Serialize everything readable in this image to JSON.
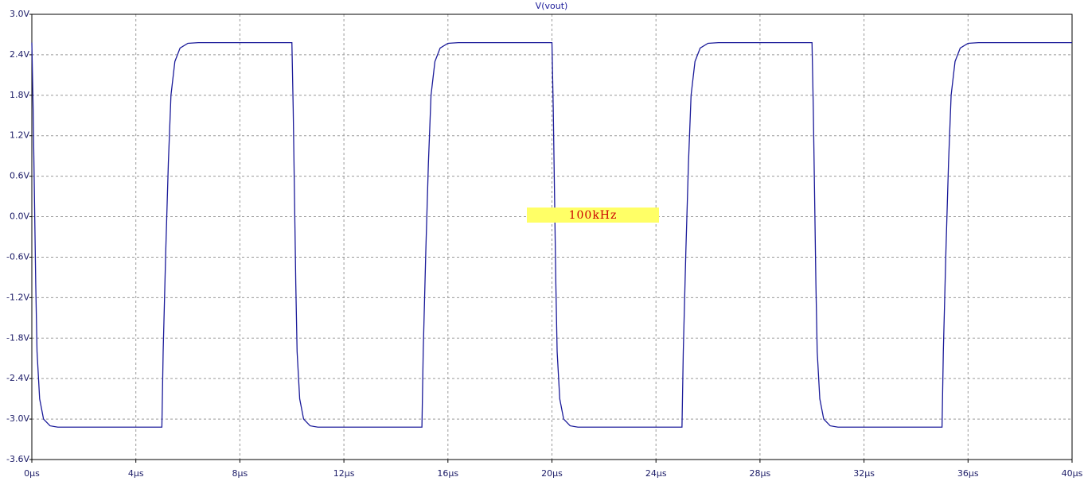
{
  "chart_data": {
    "type": "line",
    "x": [
      0,
      0.05,
      0.1,
      0.15,
      0.2,
      0.3,
      0.45,
      0.7,
      1,
      5,
      5.05,
      5.15,
      5.25,
      5.35,
      5.5,
      5.7,
      6,
      6.4,
      10,
      10.05,
      10.1,
      10.15,
      10.2,
      10.3,
      10.45,
      10.7,
      11,
      15,
      15.05,
      15.15,
      15.25,
      15.35,
      15.5,
      15.7,
      16,
      16.4,
      20,
      20.05,
      20.1,
      20.15,
      20.2,
      20.3,
      20.45,
      20.7,
      21,
      25,
      25.05,
      25.15,
      25.25,
      25.35,
      25.5,
      25.7,
      26,
      26.4,
      30,
      30.05,
      30.1,
      30.15,
      30.2,
      30.3,
      30.45,
      30.7,
      31,
      35,
      35.05,
      35.15,
      35.25,
      35.35,
      35.5,
      35.7,
      36,
      36.4,
      40
    ],
    "series": [
      {
        "name": "V(vout)",
        "color": "#1a1a99",
        "values": [
          2.58,
          1.6,
          0.3,
          -1.0,
          -2.0,
          -2.7,
          -3.0,
          -3.1,
          -3.12,
          -3.12,
          -2.0,
          -0.5,
          0.8,
          1.8,
          2.3,
          2.5,
          2.57,
          2.58,
          2.58,
          1.6,
          0.3,
          -1.0,
          -2.0,
          -2.7,
          -3.0,
          -3.1,
          -3.12,
          -3.12,
          -2.0,
          -0.5,
          0.8,
          1.8,
          2.3,
          2.5,
          2.57,
          2.58,
          2.58,
          1.6,
          0.3,
          -1.0,
          -2.0,
          -2.7,
          -3.0,
          -3.1,
          -3.12,
          -3.12,
          -2.0,
          -0.5,
          0.8,
          1.8,
          2.3,
          2.5,
          2.57,
          2.58,
          2.58,
          1.6,
          0.3,
          -1.0,
          -2.0,
          -2.7,
          -3.0,
          -3.1,
          -3.12,
          -3.12,
          -2.0,
          -0.5,
          0.8,
          1.8,
          2.3,
          2.5,
          2.57,
          2.58,
          2.58
        ]
      }
    ],
    "xlim": [
      0,
      40
    ],
    "xticks": [
      {
        "value": 0,
        "label": "0µs"
      },
      {
        "value": 4,
        "label": "4µs"
      },
      {
        "value": 8,
        "label": "8µs"
      },
      {
        "value": 12,
        "label": "12µs"
      },
      {
        "value": 16,
        "label": "16µs"
      },
      {
        "value": 20,
        "label": "20µs"
      },
      {
        "value": 24,
        "label": "24µs"
      },
      {
        "value": 28,
        "label": "28µs"
      },
      {
        "value": 32,
        "label": "32µs"
      },
      {
        "value": 36,
        "label": "36µs"
      },
      {
        "value": 40,
        "label": "40µs"
      }
    ],
    "ylim": [
      -3.6,
      3.0
    ],
    "yticks": [
      {
        "value": 3.0,
        "label": "3.0V"
      },
      {
        "value": 2.4,
        "label": "2.4V"
      },
      {
        "value": 1.8,
        "label": "1.8V"
      },
      {
        "value": 1.2,
        "label": "1.2V"
      },
      {
        "value": 0.6,
        "label": "0.6V"
      },
      {
        "value": 0.0,
        "label": "0.0V"
      },
      {
        "value": -0.6,
        "label": "-0.6V"
      },
      {
        "value": -1.2,
        "label": "-1.2V"
      },
      {
        "value": -1.8,
        "label": "-1.8V"
      },
      {
        "value": -2.4,
        "label": "-2.4V"
      },
      {
        "value": -3.0,
        "label": "-3.0V"
      },
      {
        "value": -3.6,
        "label": "-3.6V"
      }
    ],
    "grid": true,
    "annotation": "100kHz"
  }
}
